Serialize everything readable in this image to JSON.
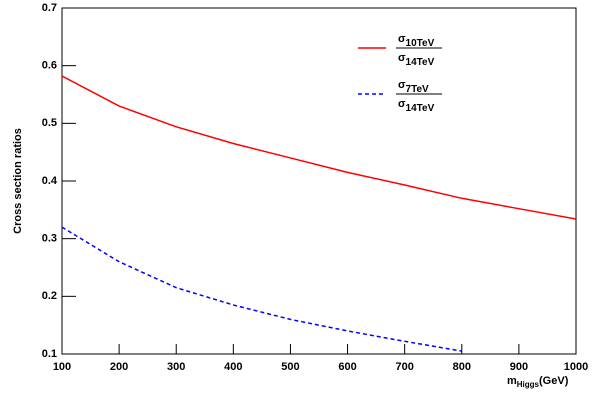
{
  "chart_data": {
    "type": "line",
    "y_label": "Cross section ratios",
    "x_label": {
      "main": "m",
      "sub": "Higgs",
      "unit": "(GeV)"
    },
    "x": [
      100,
      200,
      300,
      400,
      500,
      600,
      700,
      800,
      900,
      1000
    ],
    "series": [
      {
        "name": {
          "num": "σ",
          "num_sub": "10TeV",
          "den": "σ",
          "den_sub": "14TeV"
        },
        "color": "#ff0000",
        "dash": false,
        "values": [
          0.582,
          0.53,
          0.494,
          0.465,
          0.44,
          0.415,
          0.393,
          0.37,
          0.352,
          0.334
        ]
      },
      {
        "name": {
          "num": "σ",
          "num_sub": "7TeV",
          "den": "σ",
          "den_sub": "14TeV"
        },
        "color": "#0000ff",
        "dash": true,
        "values": [
          0.32,
          0.26,
          0.215,
          0.185,
          0.16,
          0.14,
          0.122,
          0.105,
          null,
          null
        ]
      }
    ],
    "xlim": [
      100,
      1000
    ],
    "xticks": [
      100,
      200,
      300,
      400,
      500,
      600,
      700,
      800,
      900,
      1000
    ],
    "ylim": [
      0.1,
      0.7
    ],
    "yticks": [
      0.1,
      0.2,
      0.3,
      0.4,
      0.5,
      0.6,
      0.7
    ],
    "grid": false
  }
}
